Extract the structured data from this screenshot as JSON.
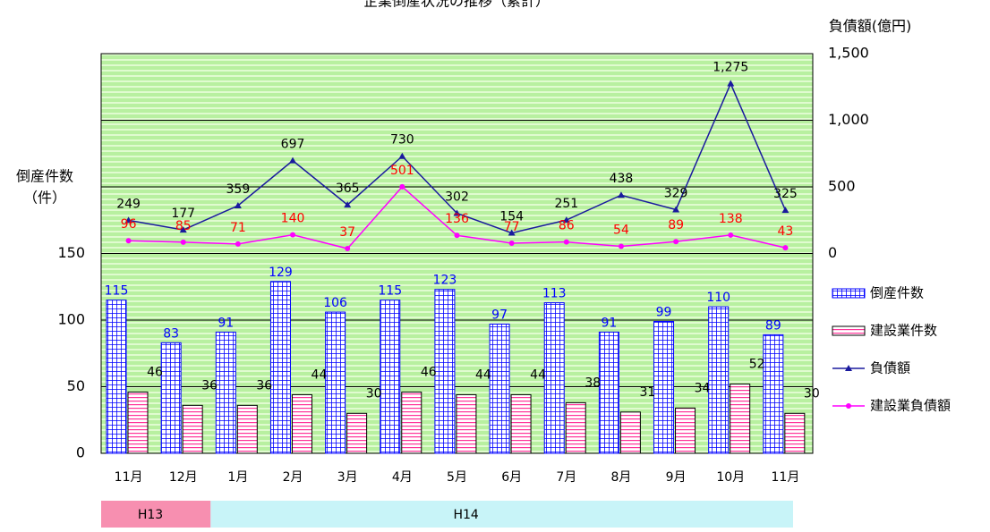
{
  "chart_data": {
    "type": "bar_line",
    "title": "企業倒産状況の推移（累計）",
    "y_label": [
      "倒産件数",
      "（件）"
    ],
    "y2_label": "負債額(億円)",
    "categories": [
      "11月",
      "12月",
      "1月",
      "2月",
      "3月",
      "4月",
      "5月",
      "6月",
      "7月",
      "8月",
      "9月",
      "10月",
      "11月"
    ],
    "eras": [
      {
        "label": "H13",
        "span": 2,
        "color": "#f78fb0"
      },
      {
        "label": "H14",
        "span": 11,
        "color": "#c8f4f8"
      }
    ],
    "ylim": [
      0,
      300
    ],
    "yticks": [
      0,
      50,
      100,
      150
    ],
    "y2lim": [
      -1500,
      1500
    ],
    "y2ticks": [
      0,
      {
        "value": 500,
        "label": "500"
      },
      {
        "value": 1000,
        "label": "1,000"
      },
      {
        "value": 1500,
        "label": "1,500"
      }
    ],
    "grid": true,
    "series": [
      {
        "name": "倒産件数",
        "kind": "bar",
        "color": "#0000ff",
        "values": [
          115,
          83,
          91,
          129,
          106,
          115,
          123,
          97,
          113,
          91,
          99,
          110,
          89
        ]
      },
      {
        "name": "建設業件数",
        "kind": "bar",
        "color": "#ff3399",
        "values": [
          46,
          36,
          36,
          44,
          30,
          46,
          44,
          44,
          38,
          31,
          34,
          52,
          30
        ]
      },
      {
        "name": "負債額",
        "kind": "line",
        "axis": "y2",
        "color": "#1a1a9e",
        "values": [
          249,
          177,
          359,
          697,
          365,
          730,
          302,
          154,
          251,
          438,
          329,
          1275,
          325
        ],
        "value_labels": [
          "249",
          "177",
          "359",
          "697",
          "365",
          "730",
          "302",
          "154",
          "251",
          "438",
          "329",
          "1,275",
          "325"
        ]
      },
      {
        "name": "建設業負債額",
        "kind": "line",
        "axis": "y2",
        "color": "#ff00ff",
        "values": [
          96,
          85,
          71,
          140,
          37,
          501,
          136,
          77,
          86,
          54,
          89,
          138,
          43
        ]
      }
    ]
  }
}
